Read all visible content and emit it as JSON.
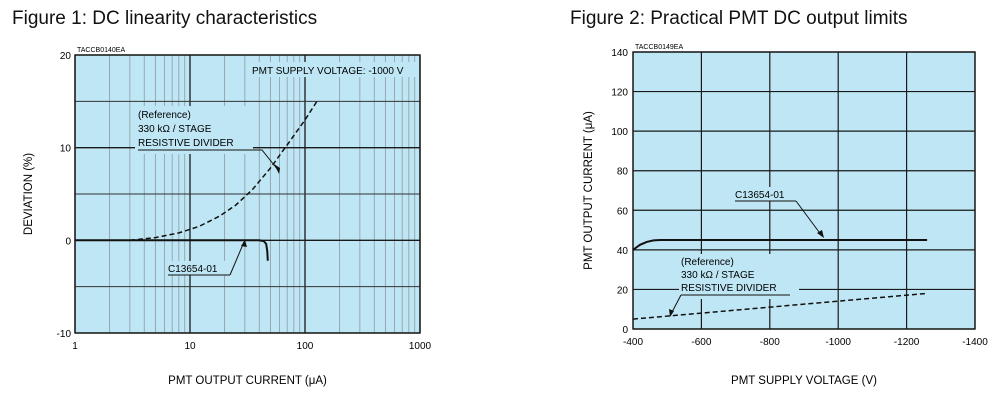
{
  "figures": [
    {
      "title": "Figure 1: DC linearity characteristics",
      "code": "TACCB0140EA",
      "chart_data": {
        "type": "line",
        "xlabel": "PMT OUTPUT CURRENT (μA)",
        "ylabel": "DEVIATION (%)",
        "x_scale": "log",
        "xlim": [
          1,
          1000
        ],
        "ylim": [
          -10,
          20
        ],
        "x_ticks": [
          1,
          10,
          100,
          1000
        ],
        "x_tick_labels": [
          "1",
          "10",
          "100",
          "1000"
        ],
        "y_ticks": [
          -10,
          0,
          10,
          20
        ],
        "y_tick_labels": [
          "-10",
          "0",
          "10",
          "20"
        ],
        "grid": true,
        "annotations": [
          {
            "text": "PMT SUPPLY VOLTAGE: -1000 V"
          },
          {
            "lines": [
              "(Reference)",
              "330 kΩ / STAGE",
              "RESISTIVE DIVIDER"
            ]
          },
          {
            "text": "C13654-01"
          }
        ],
        "series": [
          {
            "name": "C13654-01",
            "style": "solid",
            "x": [
              1.0,
              3.0,
              5.0,
              10.0,
              20.0,
              30.0,
              40.0,
              44.0,
              46.0,
              47.0,
              47.5
            ],
            "y": [
              0.0,
              0.0,
              0.0,
              0.0,
              0.0,
              0.0,
              0.0,
              -0.1,
              -0.4,
              -1.2,
              -2.2
            ]
          },
          {
            "name": "(Reference) 330 kΩ / STAGE RESISTIVE DIVIDER",
            "style": "dashed",
            "x": [
              3.0,
              5.0,
              8.0,
              12.0,
              18.0,
              25.0,
              35.0,
              50.0,
              70.0,
              100.0,
              130.0
            ],
            "y": [
              0.0,
              0.3,
              0.8,
              1.5,
              2.6,
              3.8,
              5.5,
              7.8,
              10.3,
              13.0,
              15.2
            ]
          }
        ]
      }
    },
    {
      "title": "Figure 2: Practical PMT DC output limits",
      "code": "TACCB0149EA",
      "chart_data": {
        "type": "line",
        "xlabel": "PMT SUPPLY VOLTAGE (V)",
        "ylabel": "PMT OUTPUT CURRENT (μA)",
        "xlim": [
          -400,
          -1400
        ],
        "ylim": [
          0,
          140
        ],
        "x_ticks": [
          -400,
          -600,
          -800,
          -1000,
          -1200,
          -1400
        ],
        "x_tick_labels": [
          "-400",
          "-600",
          "-800",
          "-1000",
          "-1200",
          "-1400"
        ],
        "y_ticks": [
          0,
          20,
          40,
          60,
          80,
          100,
          120,
          140
        ],
        "y_tick_labels": [
          "0",
          "20",
          "40",
          "60",
          "80",
          "100",
          "120",
          "140"
        ],
        "grid": true,
        "annotations": [
          {
            "text": "C13654-01"
          },
          {
            "lines": [
              "(Reference)",
              "330 kΩ / STAGE",
              "RESISTIVE DIVIDER"
            ]
          }
        ],
        "series": [
          {
            "name": "C13654-01",
            "style": "solid",
            "x": [
              -400,
              -420,
              -440,
              -460,
              -480,
              -500,
              -600,
              -800,
              -1000,
              -1200,
              -1260
            ],
            "y": [
              40,
              42.5,
              44,
              44.8,
              45,
              45,
              45,
              45,
              45,
              45,
              45
            ]
          },
          {
            "name": "(Reference) 330 kΩ / STAGE RESISTIVE DIVIDER",
            "style": "dashed",
            "x": [
              -400,
              -1260
            ],
            "y": [
              5,
              18
            ]
          }
        ]
      }
    }
  ]
}
